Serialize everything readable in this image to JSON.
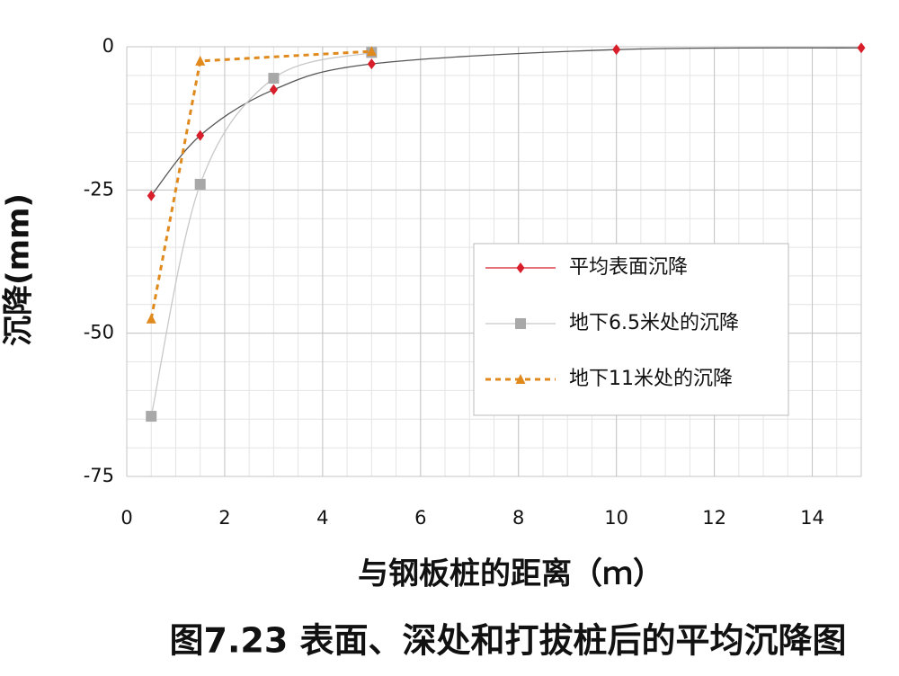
{
  "chart_data": {
    "type": "line",
    "ylabel": "沉降(mm)",
    "xlabel": "与钢板桩的距离（ｍ）",
    "caption": "图7.23 表面、深处和打拔桩后的平均沉降图",
    "xlim": [
      0,
      15
    ],
    "xticks": [
      0,
      2,
      4,
      6,
      8,
      10,
      12,
      14
    ],
    "ylim": [
      -75,
      0
    ],
    "yticks": [
      -75,
      -50,
      -25,
      0
    ],
    "grid": true,
    "series": [
      {
        "name": "平均表面沉降",
        "color": "#d81e2a",
        "line_color": "#555555",
        "marker": "diamond",
        "dash": false,
        "smooth": true,
        "x": [
          0.5,
          1.5,
          3,
          5,
          10,
          15
        ],
        "values": [
          -26,
          -15.5,
          -7.5,
          -3,
          -0.5,
          -0.2
        ]
      },
      {
        "name": "地下6.5米处的沉降",
        "color": "#a8a8a8",
        "line_color": "#c8c8c8",
        "marker": "square",
        "dash": false,
        "smooth": true,
        "x": [
          0.5,
          1.5,
          3,
          5
        ],
        "values": [
          -64.5,
          -24,
          -5.5,
          -1
        ]
      },
      {
        "name": "地下11米处的沉降",
        "color": "#e08a1e",
        "line_color": "#e08a1e",
        "marker": "triangle",
        "dash": true,
        "smooth": false,
        "x": [
          0.5,
          1.5,
          5
        ],
        "values": [
          -47.5,
          -2.5,
          -0.8
        ]
      }
    ]
  }
}
